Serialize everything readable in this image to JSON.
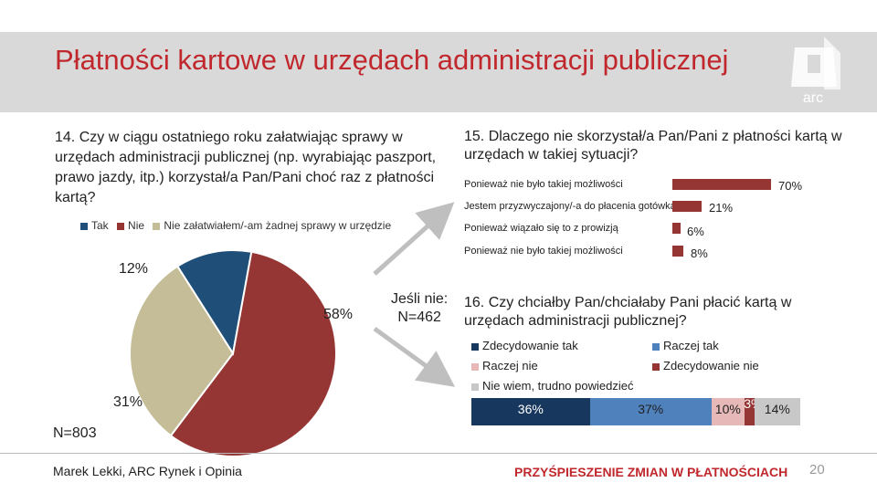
{
  "slide": {
    "title": "Płatności kartowe w urzędach administracji publicznej",
    "logo_text": "arc",
    "author": "Marek Lekki, ARC Rynek i Opinia",
    "tagline": "PRZYŚPIESZENIE ZMIAN W PŁATNOŚCIACH",
    "page_number": "20"
  },
  "colors": {
    "title": "#c0282d",
    "blue": "#1f4e79",
    "red": "#963634",
    "grey": "#c4bd97",
    "header_band": "#d9d9d9"
  },
  "q14": {
    "text": "14. Czy w ciągu ostatniego roku załatwiając sprawy w urzędach administracji publicznej (np. wyrabiając paszport, prawo jazdy, itp.) korzystał/a Pan/Pani choć raz z płatności kartą?",
    "n_label": "N=803",
    "subset_label_line1": "Jeśli nie:",
    "subset_label_line2": "N=462"
  },
  "q15": {
    "text": "15. Dlaczego nie skorzystał/a Pan/Pani z płatności kartą w urzędach w takiej sytuacji?"
  },
  "q16": {
    "text": "16. Czy chciałby Pan/chciałaby Pani płacić kartą w urzędach administracji publicznej?"
  },
  "chart_data": [
    {
      "type": "pie",
      "legend": [
        "Tak",
        "Nie",
        "Nie załatwiałem/-am żadnej sprawy w urzędzie"
      ],
      "slices": [
        {
          "name": "Tak",
          "value": 12,
          "label": "12%",
          "color": "#1f4e79"
        },
        {
          "name": "Nie",
          "value": 58,
          "label": "58%",
          "color": "#963634"
        },
        {
          "name": "Nie załatwiałem/-am żadnej sprawy w urzędzie",
          "value": 31,
          "label": "31%",
          "color": "#c4bd97"
        }
      ]
    },
    {
      "type": "bar",
      "orientation": "horizontal",
      "categories": [
        "Ponieważ nie było takiej możliwości",
        "Jestem przyzwyczajony/-a do płacenia gotówką",
        "Ponieważ wiązało się to z prowizją",
        "Ponieważ nie było takiej możliwości"
      ],
      "values": [
        70,
        21,
        6,
        8
      ],
      "labels": [
        "70%",
        "21%",
        "6%",
        "8%"
      ],
      "xlim": [
        0,
        70
      ],
      "color": "#963634"
    },
    {
      "type": "bar",
      "orientation": "horizontal",
      "stacked": true,
      "legend": [
        "Zdecydowanie tak",
        "Raczej tak",
        "Raczej nie",
        "Zdecydowanie nie",
        "Nie wiem, trudno powiedzieć"
      ],
      "series": [
        {
          "name": "Zdecydowanie tak",
          "value": 36,
          "label": "36%",
          "color": "#17375e"
        },
        {
          "name": "Raczej tak",
          "value": 37,
          "label": "37%",
          "color": "#4f81bd"
        },
        {
          "name": "Raczej nie",
          "value": 10,
          "label": "10%",
          "color": "#e6b9b8"
        },
        {
          "name": "Zdecydowanie nie",
          "value": 3,
          "label": "3%",
          "color": "#963634"
        },
        {
          "name": "Nie wiem, trudno powiedzieć",
          "value": 14,
          "label": "14%",
          "color": "#c8c8c8"
        }
      ]
    }
  ]
}
